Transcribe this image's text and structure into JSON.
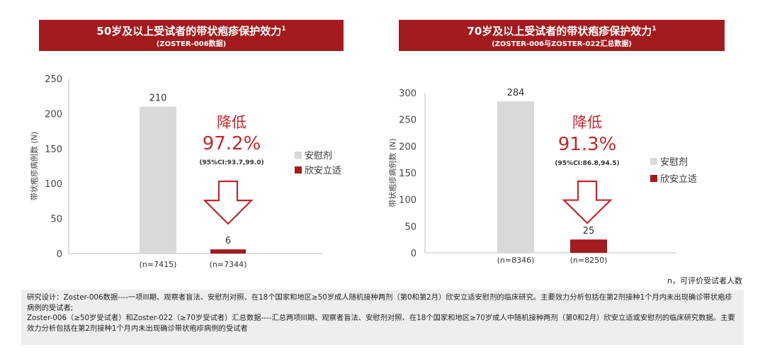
{
  "panels": [
    {
      "title": "50岁及以上受试者的带状疱疹保护效力",
      "sup": "1",
      "subtitle": "(ZOSTER-006数据)"
    },
    {
      "title": "70岁及以上受试者的带状疱疹保护效力",
      "sup": "1",
      "subtitle": "(ZOSTER-006与ZOSTER-022汇总数据)"
    }
  ],
  "chart_data": [
    {
      "type": "bar",
      "categories": [
        "(n=7415)",
        "(n=7344)"
      ],
      "series": [
        {
          "name": "安慰剂",
          "values": [
            210,
            null
          ]
        },
        {
          "name": "欣安立适",
          "values": [
            null,
            6
          ]
        }
      ],
      "data_labels": [
        "210",
        "6"
      ],
      "ylabel": "带状疱疹病例数 (N)",
      "yticks": [
        0,
        50,
        100,
        150,
        200,
        250
      ],
      "ylim": [
        0,
        250
      ],
      "legend_position": "right",
      "annotation": {
        "heading": "降低",
        "value": "97.2%",
        "ci": "(95%CI:93.7,99.0)"
      }
    },
    {
      "type": "bar",
      "categories": [
        "(n=8346)",
        "(n=8250)"
      ],
      "series": [
        {
          "name": "安慰剂",
          "values": [
            284,
            null
          ]
        },
        {
          "name": "欣安立适",
          "values": [
            null,
            25
          ]
        }
      ],
      "data_labels": [
        "284",
        "25"
      ],
      "ylabel": "带状疱疹病例数 (N)",
      "yticks": [
        0,
        50,
        100,
        150,
        200,
        250,
        300
      ],
      "ylim": [
        0,
        300
      ],
      "legend_position": "right",
      "annotation": {
        "heading": "降低",
        "value": "91.3%",
        "ci": "(95%CI:86.8,94.5)"
      }
    }
  ],
  "colors": {
    "placebo": "#d9d9d9",
    "vaccine": "#a31b1e",
    "banner": "#a31b1e",
    "annotation": "#c0282c"
  },
  "footnote_n": "n，可评价受试者人数",
  "study_design": [
    "研究设计：Zoster-006数据----一项III期、观察者盲法、安慰剂对照、在18个国家和地区≥50岁成人随机接种两剂（第0和第2月）欣安立适安慰剂的临床研究。主要效力分析包括在第2剂接种1个月内未出现确诊带状疱疹病例的受试者;",
    "Zoster-006（≥50岁受试者）和Zoster-022（≥70岁受试者）汇总数据----汇总两项III期、观察者盲法、安慰剂对照、在18个国家和地区≥70岁成人中随机接种两剂（第0和2月）欣安立适或安慰剂的临床研究数据。主要效力分析包括在第2剂接种1个月内未出现确诊带状疱疹病例的受试者"
  ]
}
